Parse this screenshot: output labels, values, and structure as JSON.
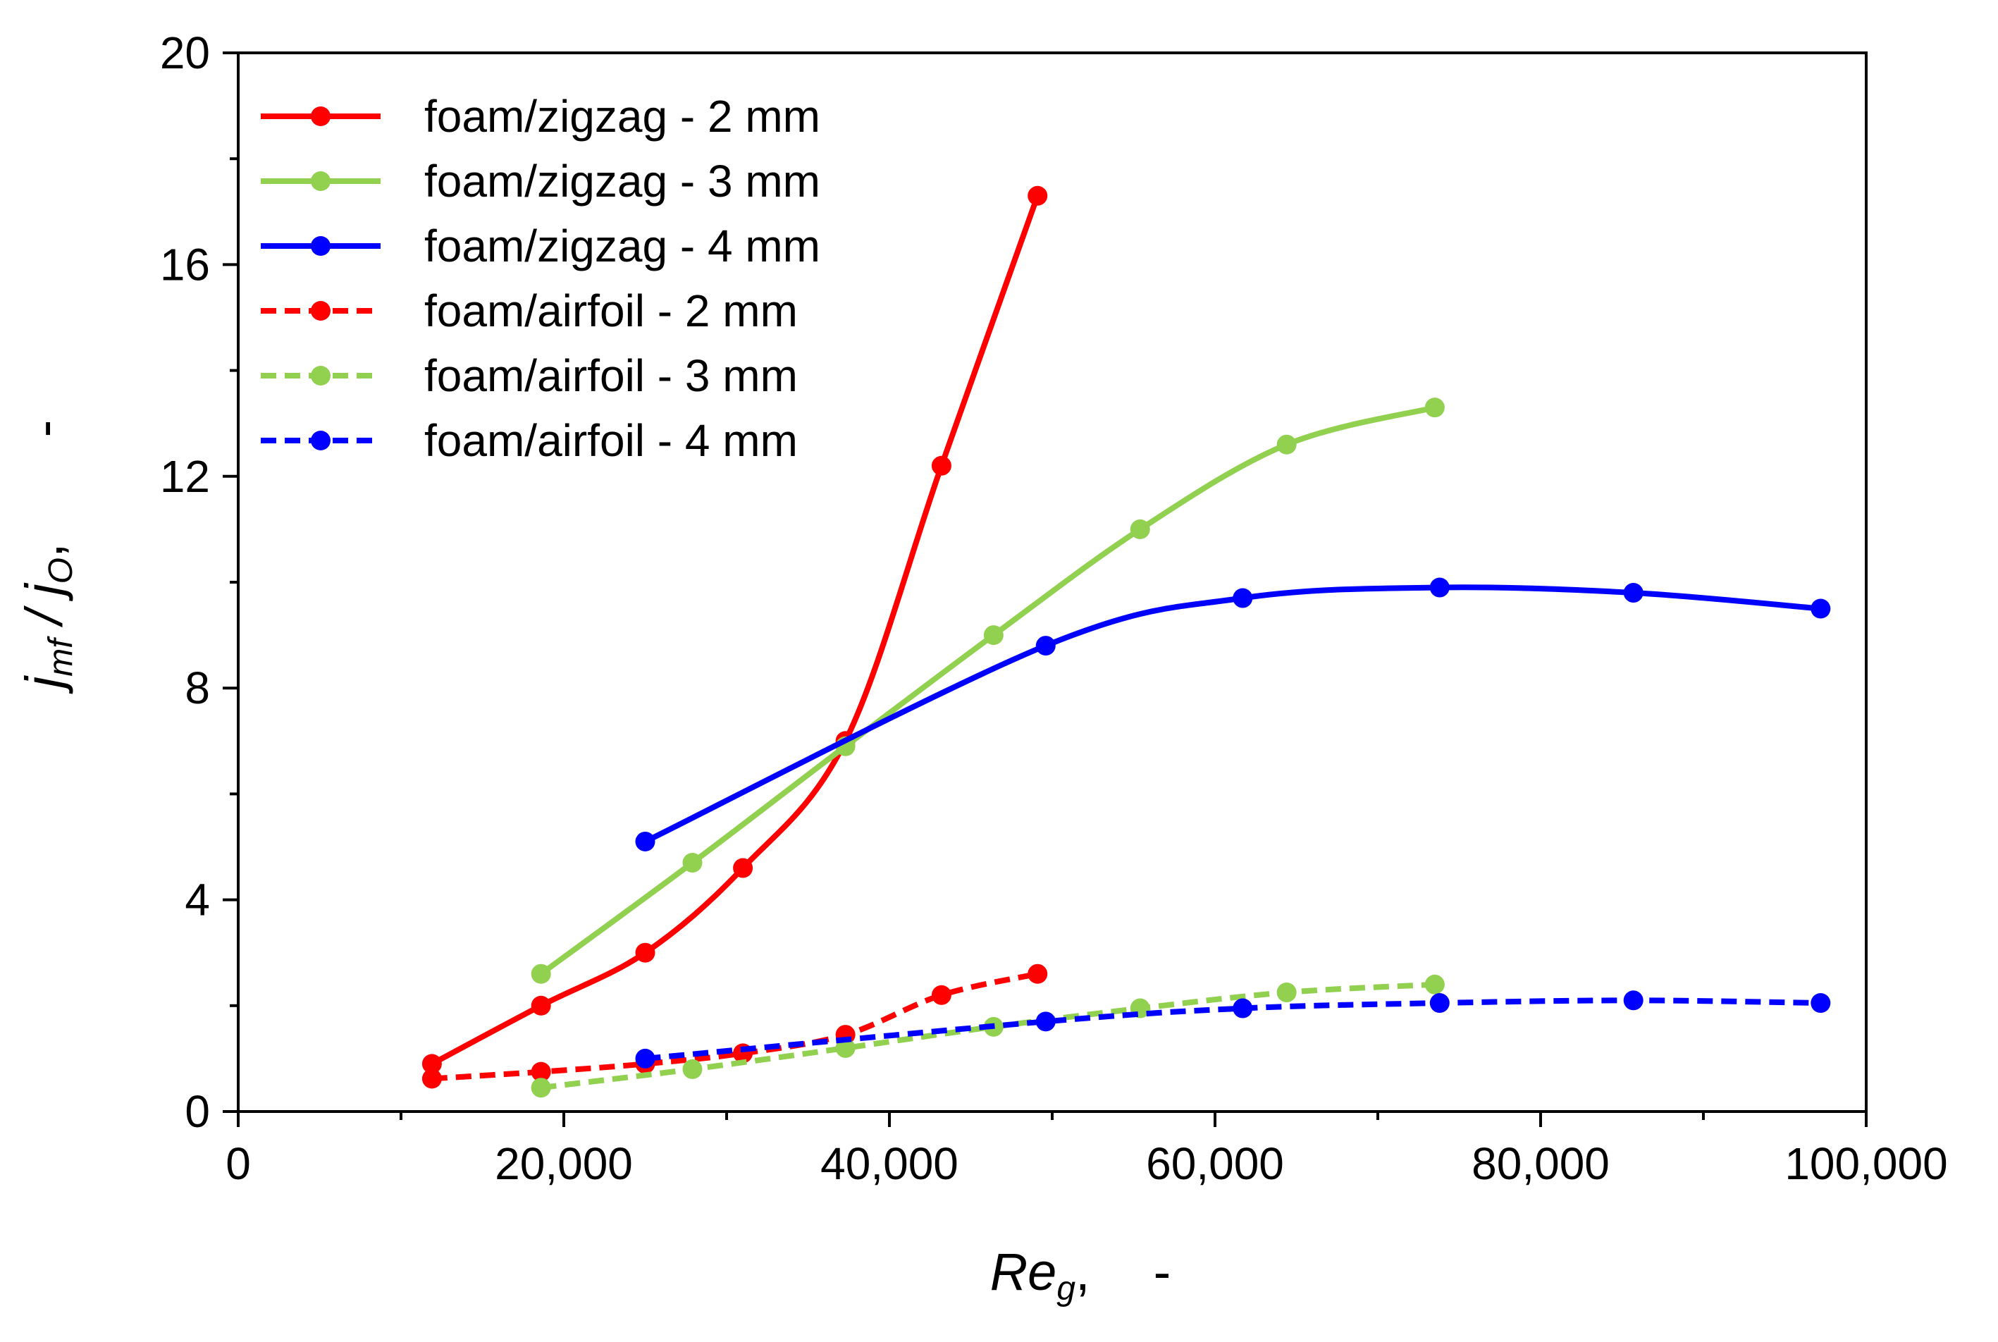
{
  "chart_data": {
    "type": "line",
    "title": "",
    "xlabel": {
      "main": "Re",
      "sub": "g",
      "suffix": ",",
      "unit": "-"
    },
    "ylabel": {
      "j1": "j",
      "s1": "mf",
      "sep": " / ",
      "j2": "j",
      "s2": "O",
      "suffix": ",",
      "unit": "-"
    },
    "xlim": [
      0,
      100000
    ],
    "ylim": [
      0,
      20
    ],
    "xticks": [
      0,
      20000,
      40000,
      60000,
      80000,
      100000
    ],
    "xtick_labels": [
      "0",
      "20,000",
      "40,000",
      "60,000",
      "80,000",
      "100,000"
    ],
    "yticks": [
      0,
      4,
      8,
      12,
      16,
      20
    ],
    "ytick_labels": [
      "0",
      "4",
      "8",
      "12",
      "16",
      "20"
    ],
    "grid": false,
    "legend_position": "top-left",
    "series": [
      {
        "name": "foam/zigzag - 2 mm",
        "color": "#ff0000",
        "dashed": false,
        "x": [
          11900,
          18600,
          25000,
          31000,
          37300,
          43200,
          49100
        ],
        "y": [
          0.9,
          2.0,
          3.0,
          4.6,
          7.0,
          12.2,
          17.3
        ]
      },
      {
        "name": "foam/zigzag - 3 mm",
        "color": "#92d050",
        "dashed": false,
        "x": [
          18600,
          27900,
          37300,
          46400,
          55400,
          64400,
          73500
        ],
        "y": [
          2.6,
          4.7,
          6.9,
          9.0,
          11.0,
          12.6,
          13.3
        ]
      },
      {
        "name": "foam/zigzag - 4 mm",
        "color": "#0000ff",
        "dashed": false,
        "x": [
          25000,
          49600,
          61700,
          73800,
          85700,
          97200
        ],
        "y": [
          5.1,
          8.8,
          9.7,
          9.9,
          9.8,
          9.5
        ]
      },
      {
        "name": "foam/airfoil - 2 mm",
        "color": "#ff0000",
        "dashed": true,
        "x": [
          11900,
          18600,
          25000,
          31000,
          37300,
          43200,
          49100
        ],
        "y": [
          0.62,
          0.75,
          0.9,
          1.1,
          1.45,
          2.2,
          2.6
        ]
      },
      {
        "name": "foam/airfoil - 3 mm",
        "color": "#92d050",
        "dashed": true,
        "x": [
          18600,
          27900,
          37300,
          46400,
          55400,
          64400,
          73500
        ],
        "y": [
          0.45,
          0.8,
          1.2,
          1.6,
          1.95,
          2.25,
          2.4
        ]
      },
      {
        "name": "foam/airfoil - 4 mm",
        "color": "#0000ff",
        "dashed": true,
        "x": [
          25000,
          49600,
          61700,
          73800,
          85700,
          97200
        ],
        "y": [
          1.0,
          1.7,
          1.95,
          2.05,
          2.1,
          2.05
        ]
      }
    ]
  }
}
